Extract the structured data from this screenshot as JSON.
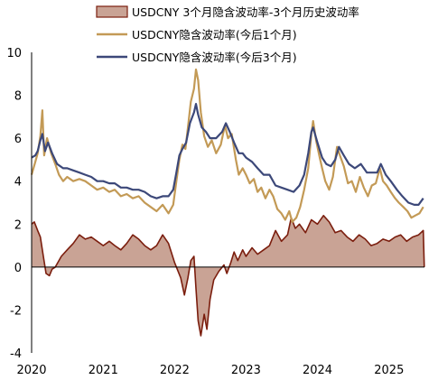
{
  "chart_data": {
    "type": "line",
    "title": "",
    "xlabel": "",
    "ylabel": "",
    "ylim": [
      -4,
      10
    ],
    "yticks": [
      "10",
      "8",
      "6",
      "4",
      "2",
      "0",
      "-2",
      "-4"
    ],
    "xlim": [
      "2020-01-01",
      "2025-07-01"
    ],
    "xticks": [
      "2020",
      "2021",
      "2022",
      "2023",
      "2024",
      "2025"
    ],
    "grid": false,
    "legend_position": "top",
    "series": [
      {
        "name": "USDCNY 3个月隐含波动率-3个月历史波动率",
        "type": "area",
        "color": "#7B1E0E",
        "fill": "#C9A395",
        "points": [
          [
            "2020-01-01",
            2.0
          ],
          [
            "2020-01-15",
            2.1
          ],
          [
            "2020-02-01",
            1.7
          ],
          [
            "2020-02-15",
            1.4
          ],
          [
            "2020-03-01",
            0.5
          ],
          [
            "2020-03-15",
            -0.3
          ],
          [
            "2020-04-01",
            -0.4
          ],
          [
            "2020-04-15",
            -0.1
          ],
          [
            "2020-05-01",
            0.0
          ],
          [
            "2020-06-01",
            0.5
          ],
          [
            "2020-07-01",
            0.8
          ],
          [
            "2020-08-01",
            1.1
          ],
          [
            "2020-09-01",
            1.5
          ],
          [
            "2020-10-01",
            1.3
          ],
          [
            "2020-11-01",
            1.4
          ],
          [
            "2020-12-01",
            1.2
          ],
          [
            "2021-01-01",
            1.0
          ],
          [
            "2021-02-01",
            1.2
          ],
          [
            "2021-03-01",
            1.0
          ],
          [
            "2021-04-01",
            0.8
          ],
          [
            "2021-05-01",
            1.1
          ],
          [
            "2021-06-01",
            1.5
          ],
          [
            "2021-07-01",
            1.3
          ],
          [
            "2021-08-01",
            1.0
          ],
          [
            "2021-09-01",
            0.8
          ],
          [
            "2021-10-01",
            1.0
          ],
          [
            "2021-11-01",
            1.5
          ],
          [
            "2021-12-01",
            1.1
          ],
          [
            "2022-01-01",
            0.2
          ],
          [
            "2022-02-01",
            -0.5
          ],
          [
            "2022-02-20",
            -1.3
          ],
          [
            "2022-03-10",
            -0.5
          ],
          [
            "2022-03-25",
            0.3
          ],
          [
            "2022-04-10",
            0.5
          ],
          [
            "2022-04-20",
            -1.0
          ],
          [
            "2022-05-01",
            -2.5
          ],
          [
            "2022-05-15",
            -3.2
          ],
          [
            "2022-06-01",
            -2.2
          ],
          [
            "2022-06-15",
            -2.9
          ],
          [
            "2022-07-01",
            -1.5
          ],
          [
            "2022-07-20",
            -0.6
          ],
          [
            "2022-08-15",
            -0.2
          ],
          [
            "2022-09-10",
            0.1
          ],
          [
            "2022-09-25",
            -0.3
          ],
          [
            "2022-10-15",
            0.2
          ],
          [
            "2022-11-01",
            0.7
          ],
          [
            "2022-11-20",
            0.3
          ],
          [
            "2022-12-15",
            0.8
          ],
          [
            "2023-01-01",
            0.5
          ],
          [
            "2023-02-01",
            0.9
          ],
          [
            "2023-03-01",
            0.6
          ],
          [
            "2023-04-01",
            0.8
          ],
          [
            "2023-05-01",
            1.0
          ],
          [
            "2023-06-01",
            1.7
          ],
          [
            "2023-07-01",
            1.2
          ],
          [
            "2023-08-01",
            1.5
          ],
          [
            "2023-08-20",
            2.3
          ],
          [
            "2023-09-10",
            1.8
          ],
          [
            "2023-10-01",
            2.0
          ],
          [
            "2023-11-01",
            1.6
          ],
          [
            "2023-12-01",
            2.2
          ],
          [
            "2024-01-01",
            2.0
          ],
          [
            "2024-02-01",
            2.4
          ],
          [
            "2024-03-01",
            2.1
          ],
          [
            "2024-04-01",
            1.6
          ],
          [
            "2024-05-01",
            1.7
          ],
          [
            "2024-06-01",
            1.4
          ],
          [
            "2024-07-01",
            1.2
          ],
          [
            "2024-08-01",
            1.5
          ],
          [
            "2024-09-01",
            1.3
          ],
          [
            "2024-10-01",
            1.0
          ],
          [
            "2024-11-01",
            1.1
          ],
          [
            "2024-12-01",
            1.3
          ],
          [
            "2025-01-01",
            1.2
          ],
          [
            "2025-02-01",
            1.4
          ],
          [
            "2025-03-01",
            1.5
          ],
          [
            "2025-04-01",
            1.2
          ],
          [
            "2025-05-01",
            1.4
          ],
          [
            "2025-06-01",
            1.5
          ],
          [
            "2025-06-25",
            1.7
          ],
          [
            "2025-06-30",
            0.0
          ]
        ]
      },
      {
        "name": "USDCNY隐含波动率(今后1个月)",
        "type": "line",
        "color": "#C39A56",
        "points": [
          [
            "2020-01-01",
            4.3
          ],
          [
            "2020-01-20",
            4.9
          ],
          [
            "2020-02-01",
            5.3
          ],
          [
            "2020-02-15",
            6.1
          ],
          [
            "2020-02-25",
            7.3
          ],
          [
            "2020-03-05",
            5.2
          ],
          [
            "2020-03-20",
            6.0
          ],
          [
            "2020-04-10",
            5.3
          ],
          [
            "2020-05-01",
            4.8
          ],
          [
            "2020-05-20",
            4.3
          ],
          [
            "2020-06-10",
            4.0
          ],
          [
            "2020-07-01",
            4.2
          ],
          [
            "2020-08-01",
            4.0
          ],
          [
            "2020-09-01",
            4.1
          ],
          [
            "2020-10-01",
            4.0
          ],
          [
            "2020-11-01",
            3.8
          ],
          [
            "2020-12-01",
            3.6
          ],
          [
            "2021-01-01",
            3.7
          ],
          [
            "2021-02-01",
            3.5
          ],
          [
            "2021-03-01",
            3.6
          ],
          [
            "2021-04-01",
            3.3
          ],
          [
            "2021-05-01",
            3.4
          ],
          [
            "2021-06-01",
            3.2
          ],
          [
            "2021-07-01",
            3.3
          ],
          [
            "2021-08-01",
            3.0
          ],
          [
            "2021-09-01",
            2.8
          ],
          [
            "2021-10-01",
            2.6
          ],
          [
            "2021-11-01",
            2.9
          ],
          [
            "2021-12-01",
            2.5
          ],
          [
            "2021-12-25",
            2.9
          ],
          [
            "2022-01-10",
            4.0
          ],
          [
            "2022-01-25",
            5.0
          ],
          [
            "2022-02-10",
            5.7
          ],
          [
            "2022-02-25",
            5.5
          ],
          [
            "2022-03-10",
            6.5
          ],
          [
            "2022-03-25",
            7.7
          ],
          [
            "2022-04-10",
            8.3
          ],
          [
            "2022-04-20",
            9.2
          ],
          [
            "2022-05-01",
            8.7
          ],
          [
            "2022-05-15",
            7.2
          ],
          [
            "2022-06-01",
            6.1
          ],
          [
            "2022-06-20",
            5.6
          ],
          [
            "2022-07-10",
            5.9
          ],
          [
            "2022-08-01",
            5.3
          ],
          [
            "2022-08-25",
            5.7
          ],
          [
            "2022-09-15",
            6.6
          ],
          [
            "2022-10-01",
            6.0
          ],
          [
            "2022-10-20",
            6.2
          ],
          [
            "2022-11-10",
            5.0
          ],
          [
            "2022-11-25",
            4.3
          ],
          [
            "2022-12-15",
            4.6
          ],
          [
            "2023-01-01",
            4.3
          ],
          [
            "2023-01-20",
            3.9
          ],
          [
            "2023-02-10",
            4.1
          ],
          [
            "2023-03-01",
            3.5
          ],
          [
            "2023-03-20",
            3.7
          ],
          [
            "2023-04-10",
            3.2
          ],
          [
            "2023-05-01",
            3.6
          ],
          [
            "2023-05-20",
            3.3
          ],
          [
            "2023-06-10",
            2.7
          ],
          [
            "2023-07-01",
            2.5
          ],
          [
            "2023-07-20",
            2.2
          ],
          [
            "2023-08-10",
            2.6
          ],
          [
            "2023-08-25",
            2.1
          ],
          [
            "2023-09-15",
            2.3
          ],
          [
            "2023-10-05",
            2.8
          ],
          [
            "2023-10-25",
            3.6
          ],
          [
            "2023-11-15",
            4.6
          ],
          [
            "2023-12-01",
            6.2
          ],
          [
            "2023-12-10",
            6.8
          ],
          [
            "2023-12-25",
            5.9
          ],
          [
            "2024-01-10",
            5.2
          ],
          [
            "2024-01-25",
            4.6
          ],
          [
            "2024-02-10",
            4.0
          ],
          [
            "2024-03-01",
            3.6
          ],
          [
            "2024-03-20",
            4.2
          ],
          [
            "2024-04-10",
            5.6
          ],
          [
            "2024-04-25",
            5.2
          ],
          [
            "2024-05-15",
            4.7
          ],
          [
            "2024-06-05",
            3.9
          ],
          [
            "2024-06-25",
            4.0
          ],
          [
            "2024-07-15",
            3.5
          ],
          [
            "2024-08-05",
            4.2
          ],
          [
            "2024-08-25",
            3.7
          ],
          [
            "2024-09-15",
            3.3
          ],
          [
            "2024-10-05",
            3.8
          ],
          [
            "2024-10-25",
            3.9
          ],
          [
            "2024-11-15",
            4.6
          ],
          [
            "2024-12-01",
            4.0
          ],
          [
            "2024-12-20",
            3.8
          ],
          [
            "2025-01-10",
            3.5
          ],
          [
            "2025-02-01",
            3.2
          ],
          [
            "2025-02-20",
            3.0
          ],
          [
            "2025-03-15",
            2.8
          ],
          [
            "2025-04-05",
            2.6
          ],
          [
            "2025-04-25",
            2.3
          ],
          [
            "2025-05-15",
            2.4
          ],
          [
            "2025-06-05",
            2.5
          ],
          [
            "2025-06-25",
            2.8
          ]
        ]
      },
      {
        "name": "USDCNY隐含波动率(今后3个月)",
        "type": "line",
        "color": "#3C4879",
        "points": [
          [
            "2020-01-01",
            5.1
          ],
          [
            "2020-01-20",
            5.2
          ],
          [
            "2020-02-01",
            5.4
          ],
          [
            "2020-02-15",
            5.9
          ],
          [
            "2020-02-25",
            6.2
          ],
          [
            "2020-03-10",
            5.4
          ],
          [
            "2020-03-25",
            5.8
          ],
          [
            "2020-04-15",
            5.3
          ],
          [
            "2020-05-10",
            4.8
          ],
          [
            "2020-06-10",
            4.6
          ],
          [
            "2020-07-01",
            4.6
          ],
          [
            "2020-08-01",
            4.5
          ],
          [
            "2020-09-01",
            4.4
          ],
          [
            "2020-10-01",
            4.3
          ],
          [
            "2020-11-01",
            4.2
          ],
          [
            "2020-12-01",
            4.0
          ],
          [
            "2021-01-01",
            4.0
          ],
          [
            "2021-02-01",
            3.9
          ],
          [
            "2021-03-01",
            3.9
          ],
          [
            "2021-04-01",
            3.7
          ],
          [
            "2021-05-01",
            3.7
          ],
          [
            "2021-06-01",
            3.6
          ],
          [
            "2021-07-01",
            3.6
          ],
          [
            "2021-08-01",
            3.5
          ],
          [
            "2021-09-01",
            3.3
          ],
          [
            "2021-10-01",
            3.2
          ],
          [
            "2021-11-01",
            3.3
          ],
          [
            "2021-12-01",
            3.3
          ],
          [
            "2021-12-25",
            3.6
          ],
          [
            "2022-01-10",
            4.4
          ],
          [
            "2022-01-25",
            5.2
          ],
          [
            "2022-02-10",
            5.5
          ],
          [
            "2022-03-01",
            5.8
          ],
          [
            "2022-03-20",
            6.7
          ],
          [
            "2022-04-10",
            7.2
          ],
          [
            "2022-04-20",
            7.6
          ],
          [
            "2022-05-01",
            7.1
          ],
          [
            "2022-05-20",
            6.5
          ],
          [
            "2022-06-10",
            6.3
          ],
          [
            "2022-07-01",
            6.0
          ],
          [
            "2022-08-01",
            6.0
          ],
          [
            "2022-09-01",
            6.3
          ],
          [
            "2022-09-20",
            6.7
          ],
          [
            "2022-10-10",
            6.3
          ],
          [
            "2022-11-01",
            5.8
          ],
          [
            "2022-11-25",
            5.3
          ],
          [
            "2022-12-15",
            5.3
          ],
          [
            "2023-01-01",
            5.1
          ],
          [
            "2023-02-01",
            4.9
          ],
          [
            "2023-03-01",
            4.6
          ],
          [
            "2023-04-01",
            4.3
          ],
          [
            "2023-05-01",
            4.3
          ],
          [
            "2023-06-01",
            3.8
          ],
          [
            "2023-07-01",
            3.7
          ],
          [
            "2023-08-01",
            3.6
          ],
          [
            "2023-09-01",
            3.5
          ],
          [
            "2023-10-01",
            3.8
          ],
          [
            "2023-10-25",
            4.3
          ],
          [
            "2023-11-15",
            5.3
          ],
          [
            "2023-12-01",
            6.3
          ],
          [
            "2023-12-10",
            6.5
          ],
          [
            "2024-01-01",
            5.8
          ],
          [
            "2024-01-25",
            5.1
          ],
          [
            "2024-02-15",
            4.8
          ],
          [
            "2024-03-10",
            4.7
          ],
          [
            "2024-04-01",
            5.0
          ],
          [
            "2024-04-20",
            5.6
          ],
          [
            "2024-05-15",
            5.2
          ],
          [
            "2024-06-10",
            4.8
          ],
          [
            "2024-07-10",
            4.6
          ],
          [
            "2024-08-10",
            4.8
          ],
          [
            "2024-09-10",
            4.4
          ],
          [
            "2024-10-10",
            4.4
          ],
          [
            "2024-11-01",
            4.4
          ],
          [
            "2024-11-20",
            4.8
          ],
          [
            "2024-12-15",
            4.3
          ],
          [
            "2025-01-10",
            4.0
          ],
          [
            "2025-02-10",
            3.6
          ],
          [
            "2025-03-10",
            3.3
          ],
          [
            "2025-04-10",
            3.0
          ],
          [
            "2025-05-10",
            2.9
          ],
          [
            "2025-06-01",
            2.9
          ],
          [
            "2025-06-25",
            3.2
          ]
        ]
      }
    ]
  }
}
